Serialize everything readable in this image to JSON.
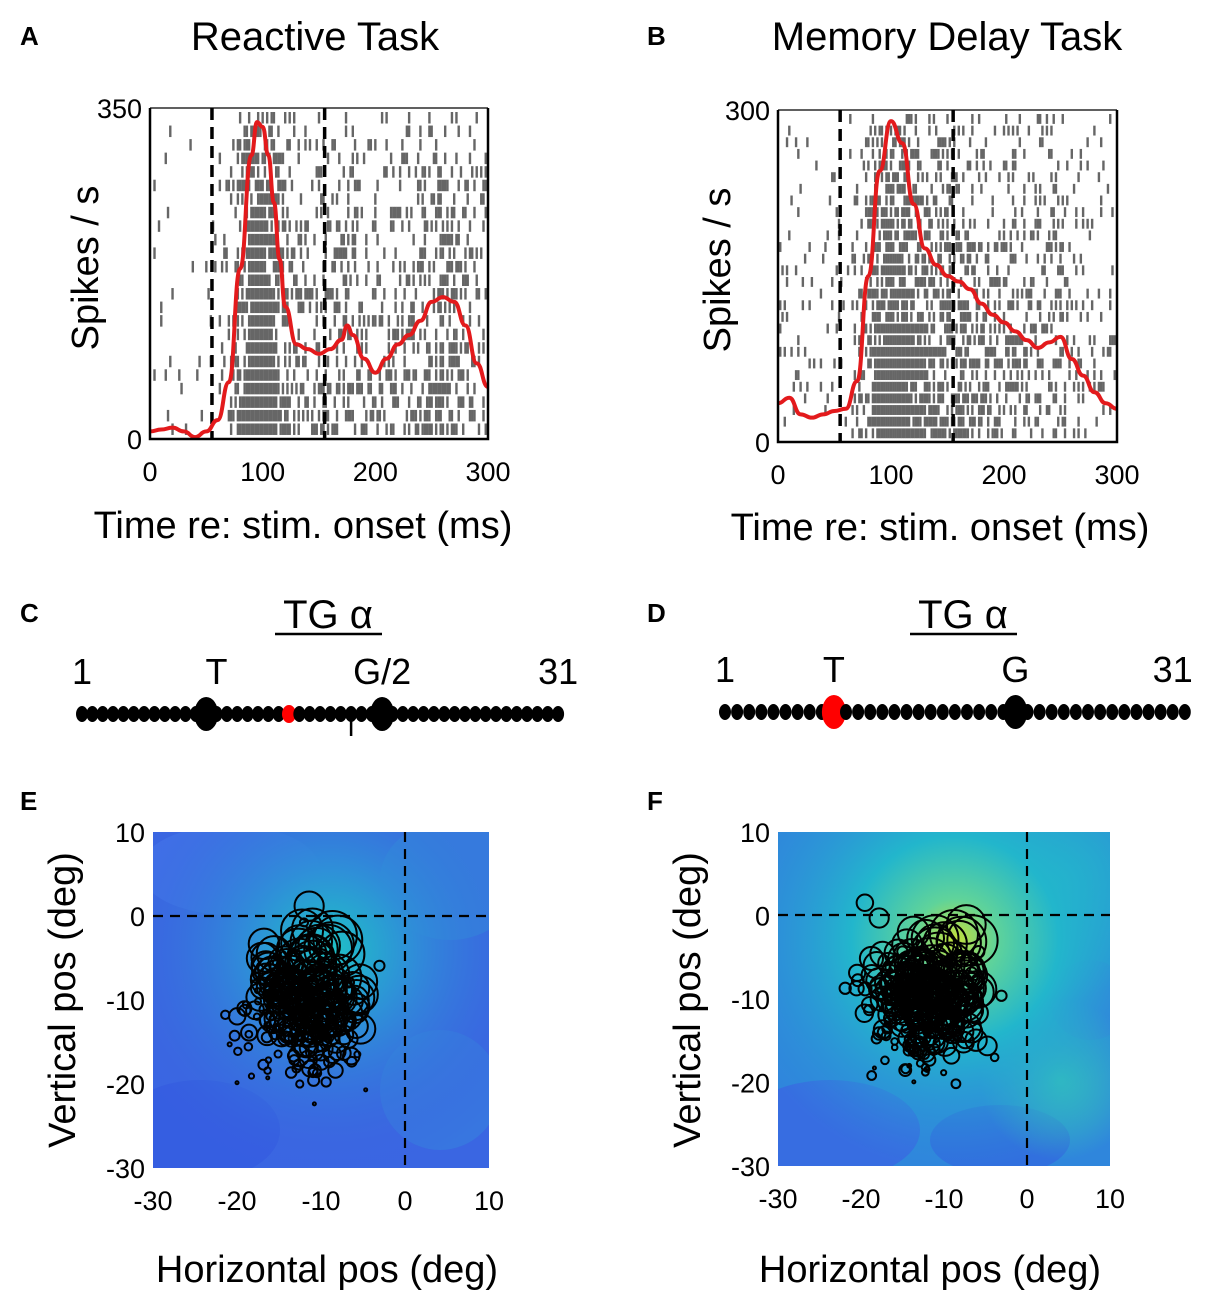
{
  "panels": [
    {
      "letter": "A"
    },
    {
      "letter": "B"
    },
    {
      "letter": "C"
    },
    {
      "letter": "D"
    },
    {
      "letter": "E"
    },
    {
      "letter": "F"
    }
  ],
  "colors": {
    "psth": "#e31a1c",
    "raster": "#666666",
    "marker": "#000000",
    "highlight": "#ff0000",
    "map_low": "#3d5be0",
    "map_mid": "#1fc1c6",
    "map_high": "#c4e03a"
  },
  "chart_data": [
    {
      "id": "A",
      "type": "line",
      "title": "Reactive Task",
      "xlabel": "Time re: stim. onset (ms)",
      "ylabel": "Spikes / s",
      "xlim": [
        0,
        300
      ],
      "ylim": [
        0,
        350
      ],
      "xticks": [
        "0",
        "100",
        "200",
        "300"
      ],
      "yticks": [
        "0",
        "350"
      ],
      "window_ms": [
        55,
        155
      ],
      "raster_trials": 24,
      "psth": {
        "x": [
          0,
          10,
          20,
          30,
          40,
          50,
          60,
          70,
          80,
          90,
          95,
          100,
          105,
          110,
          115,
          120,
          130,
          140,
          150,
          160,
          170,
          175,
          180,
          190,
          200,
          210,
          220,
          230,
          240,
          250,
          260,
          270,
          280,
          290,
          300
        ],
        "y": [
          8,
          10,
          12,
          8,
          2,
          8,
          20,
          60,
          180,
          300,
          335,
          330,
          300,
          250,
          190,
          140,
          100,
          95,
          90,
          95,
          105,
          120,
          110,
          85,
          70,
          85,
          100,
          110,
          125,
          145,
          150,
          145,
          120,
          80,
          55
        ]
      }
    },
    {
      "id": "B",
      "type": "line",
      "title": "Memory Delay Task",
      "xlabel": "Time re: stim. onset (ms)",
      "ylabel": "Spikes / s",
      "xlim": [
        0,
        300
      ],
      "ylim": [
        0,
        300
      ],
      "xticks": [
        "0",
        "100",
        "200",
        "300"
      ],
      "yticks": [
        "0",
        "300"
      ],
      "window_ms": [
        55,
        155
      ],
      "raster_trials": 28,
      "psth": {
        "x": [
          0,
          10,
          20,
          30,
          40,
          50,
          60,
          70,
          80,
          90,
          100,
          110,
          120,
          130,
          140,
          150,
          160,
          170,
          180,
          190,
          200,
          210,
          220,
          230,
          240,
          250,
          260,
          270,
          280,
          290,
          300
        ],
        "y": [
          35,
          40,
          25,
          22,
          25,
          28,
          30,
          55,
          150,
          245,
          290,
          270,
          215,
          175,
          160,
          150,
          145,
          138,
          125,
          115,
          108,
          100,
          92,
          85,
          90,
          95,
          75,
          60,
          45,
          35,
          30
        ]
      }
    },
    {
      "id": "C",
      "type": "diagram",
      "title": "TG α",
      "count": 31,
      "labels": [
        {
          "text": "1",
          "index": 1
        },
        {
          "text": "T",
          "index": 14
        },
        {
          "text": "G/2",
          "index": 30
        },
        {
          "text": "31",
          "index": 47
        }
      ],
      "big_dots": [
        13,
        30
      ],
      "highlight_dot": 21,
      "small_tick_dot": 27
    },
    {
      "id": "D",
      "type": "diagram",
      "title": "TG α",
      "count": 31,
      "labels": [
        {
          "text": "1",
          "index": 1
        },
        {
          "text": "T",
          "index": 10
        },
        {
          "text": "G",
          "index": 25
        },
        {
          "text": "31",
          "index": 38
        }
      ],
      "big_dots": [
        10,
        25
      ],
      "highlight_dot": 10
    },
    {
      "id": "E",
      "type": "scatter",
      "xlabel": "Horizontal pos (deg)",
      "ylabel": "Vertical pos (deg)",
      "xlim": [
        -30,
        10
      ],
      "ylim": [
        -30,
        10
      ],
      "xticks": [
        "-30",
        "-20",
        "-10",
        "0",
        "10"
      ],
      "yticks": [
        "-30",
        "-20",
        "-10",
        "0",
        "10"
      ],
      "hotspot": {
        "x": -8,
        "y": -4,
        "strength": 0.55
      },
      "circle_count": 260
    },
    {
      "id": "F",
      "type": "scatter",
      "xlabel": "Horizontal pos (deg)",
      "ylabel": "Vertical pos (deg)",
      "xlim": [
        -30,
        10
      ],
      "ylim": [
        -30,
        10
      ],
      "xticks": [
        "-30",
        "-20",
        "-10",
        "0",
        "10"
      ],
      "yticks": [
        "-30",
        "-20",
        "-10",
        "0",
        "10"
      ],
      "hotspot": {
        "x": -8,
        "y": -3,
        "strength": 1.0
      },
      "circle_count": 300
    }
  ]
}
